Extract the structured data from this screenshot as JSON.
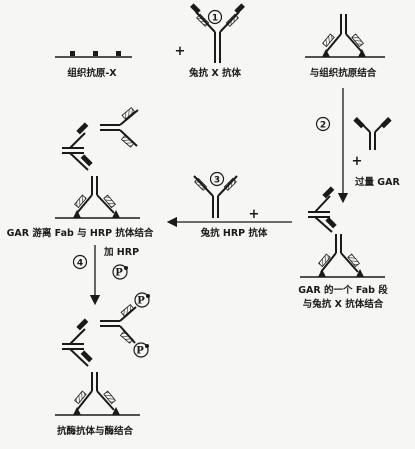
{
  "labels": {
    "tissue_antigen": "组织抗原-X",
    "rabbit_anti_x": "兔抗 X 抗体",
    "bind_tissue_antigen": "与组织抗原结合",
    "excess_gar": "过量 GAR",
    "gar_fab_bind_hrp": "GAR 游离 Fab 与 HRP 抗体结合",
    "rabbit_anti_hrp": "兔抗 HRP 抗体",
    "gar_fab_bind_x_line1": "GAR 的一个 Fab 段",
    "gar_fab_bind_x_line2": "与兔抗 X 抗体结合",
    "add_hrp": "加 HRP",
    "enzyme_antibody_bind": "抗酶抗体与酶结合"
  },
  "steps": {
    "s1": "1",
    "s2": "2",
    "s3": "3",
    "s4": "4"
  },
  "symbols": {
    "plus": "+",
    "enzyme": "P"
  }
}
